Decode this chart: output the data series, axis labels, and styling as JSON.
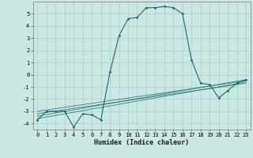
{
  "xlabel": "Humidex (Indice chaleur)",
  "xlim": [
    -0.5,
    23.5
  ],
  "ylim": [
    -4.5,
    6.0
  ],
  "yticks": [
    -4,
    -3,
    -2,
    -1,
    0,
    1,
    2,
    3,
    4,
    5
  ],
  "xticks": [
    0,
    1,
    2,
    3,
    4,
    5,
    6,
    7,
    8,
    9,
    10,
    11,
    12,
    13,
    14,
    15,
    16,
    17,
    18,
    19,
    20,
    21,
    22,
    23
  ],
  "bg_color": "#cce8e4",
  "grid_color": "#aacfca",
  "line_color": "#1a6b6b",
  "series_main_x": [
    0,
    1,
    2,
    3,
    4,
    5,
    6,
    7,
    8,
    9,
    10,
    11,
    12,
    13,
    14,
    15,
    16,
    17,
    18,
    19,
    20,
    21,
    22,
    23
  ],
  "series_main_y": [
    -3.7,
    -3.0,
    -3.0,
    -3.0,
    -4.3,
    -3.2,
    -3.3,
    -3.7,
    0.2,
    3.2,
    4.6,
    4.7,
    5.5,
    5.5,
    5.6,
    5.5,
    5.0,
    1.2,
    -0.7,
    -0.8,
    -1.9,
    -1.3,
    -0.7,
    -0.4
  ],
  "ref_lines": [
    {
      "x": [
        0,
        23
      ],
      "y": [
        -3.6,
        -0.6
      ]
    },
    {
      "x": [
        0,
        23
      ],
      "y": [
        -3.4,
        -0.4
      ]
    },
    {
      "x": [
        0,
        23
      ],
      "y": [
        -3.2,
        -0.7
      ]
    },
    {
      "x": [
        0,
        23
      ],
      "y": [
        -3.0,
        -0.5
      ]
    }
  ]
}
